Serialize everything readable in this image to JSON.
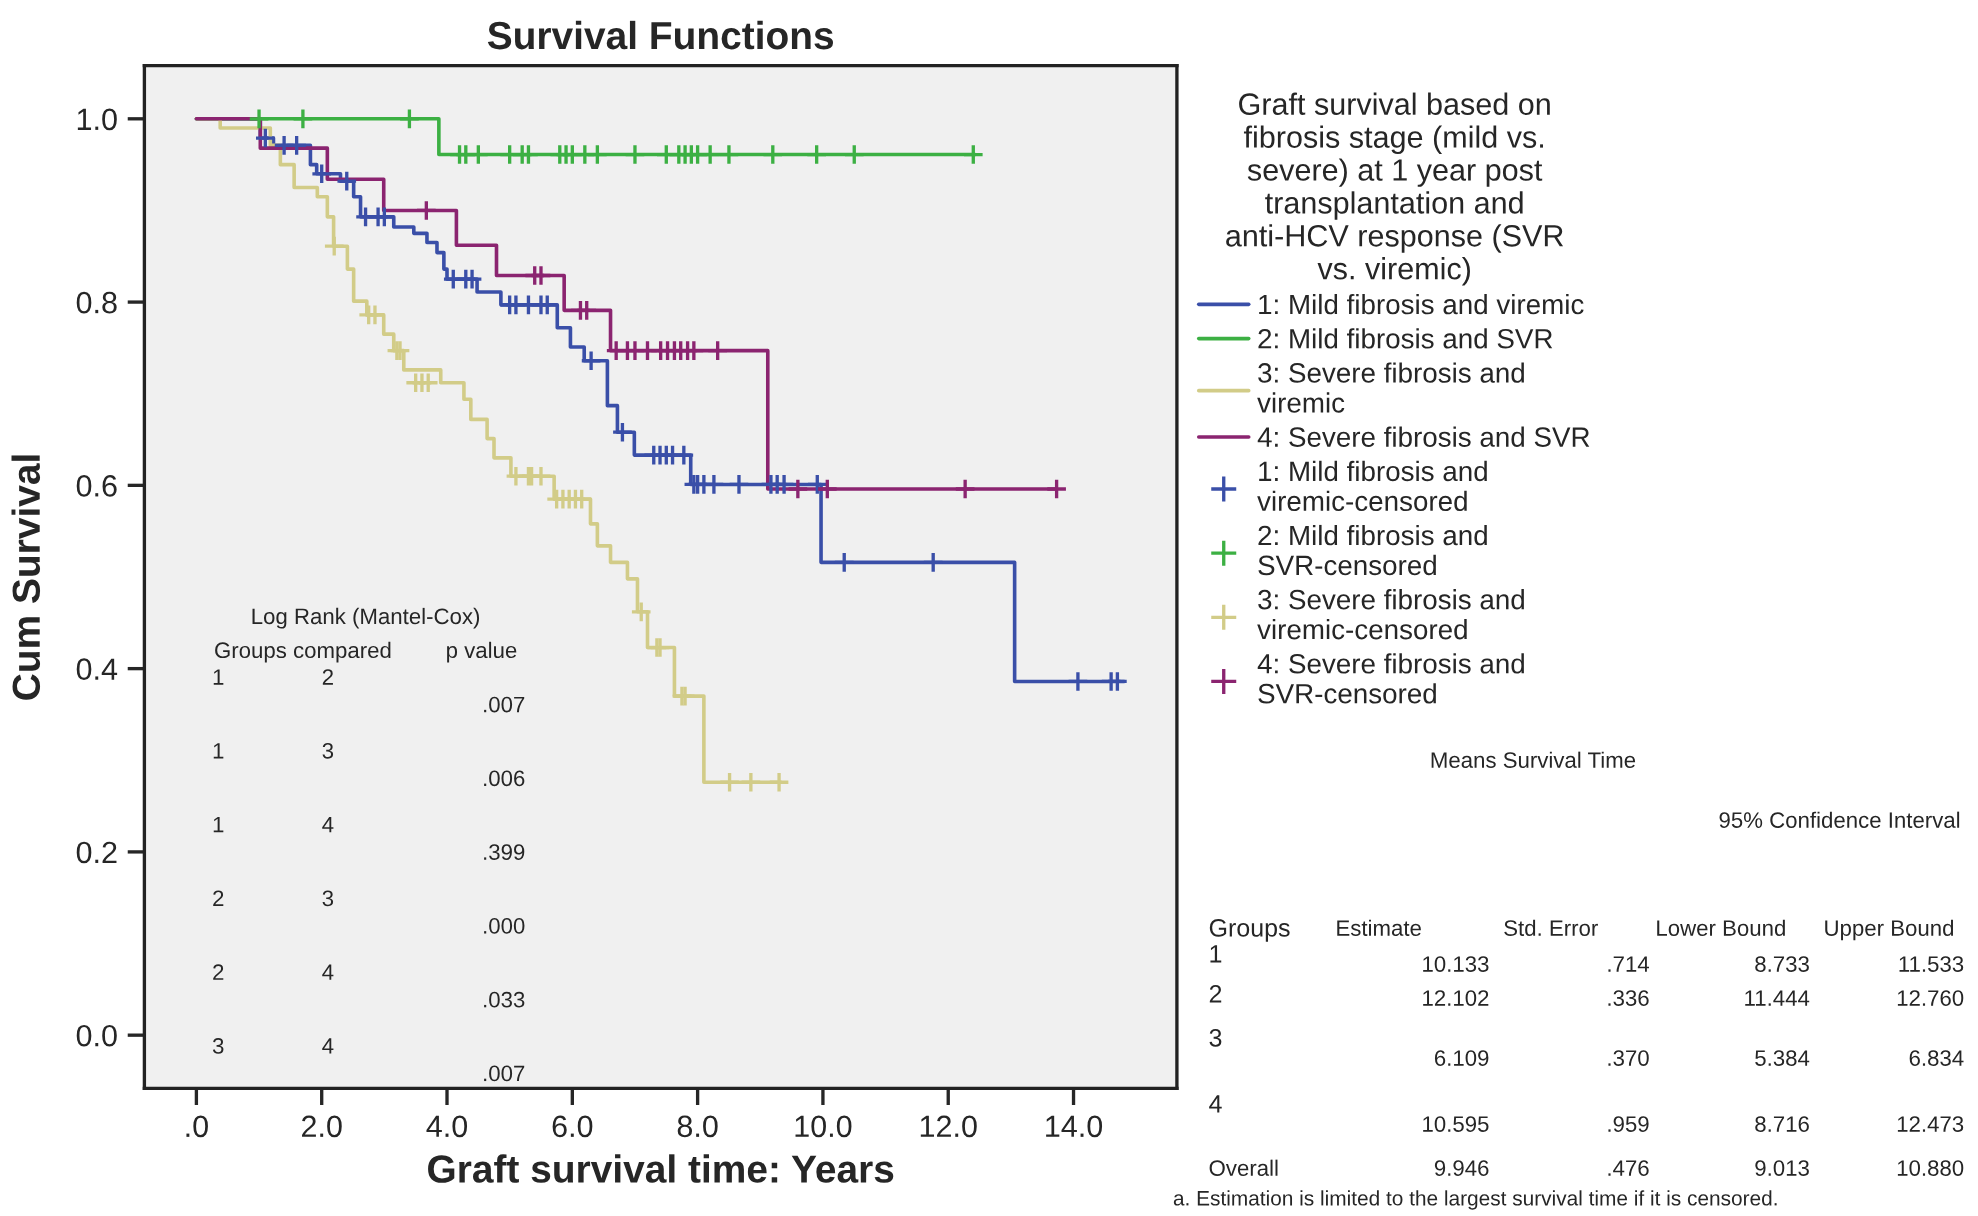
{
  "chart_data": {
    "type": "step",
    "title": "Survival Functions",
    "xlabel": "Graft survival time: Years",
    "ylabel": "Cum Survival",
    "legend_title": "Graft survival based on fibrosis stage (mild vs. severe) at 1 year post transplantation and anti-HCV response (SVR vs. viremic)",
    "xlim": [
      -0.83,
      15.65
    ],
    "ylim": [
      -0.058,
      1.058
    ],
    "xticks": [
      {
        "value": 0,
        "label": ".0"
      },
      {
        "value": 2,
        "label": "2.0"
      },
      {
        "value": 4,
        "label": "4.0"
      },
      {
        "value": 6,
        "label": "6.0"
      },
      {
        "value": 8,
        "label": "8.0"
      },
      {
        "value": 10,
        "label": "10.0"
      },
      {
        "value": 12,
        "label": "12.0"
      },
      {
        "value": 14,
        "label": "14.0"
      }
    ],
    "yticks": [
      {
        "value": 0,
        "label": "0.0"
      },
      {
        "value": 0.2,
        "label": "0.2"
      },
      {
        "value": 0.4,
        "label": "0.4"
      },
      {
        "value": 0.6,
        "label": "0.6"
      },
      {
        "value": 0.8,
        "label": "0.8"
      },
      {
        "value": 1,
        "label": "1.0"
      }
    ],
    "grid": false,
    "legend": "right",
    "series": [
      {
        "name": "1: Mild fibrosis and viremic",
        "color": "#3a4fa8",
        "x": [
          0,
          1.02,
          1.23,
          1.82,
          1.92,
          2.3,
          2.51,
          2.62,
          3.15,
          3.47,
          3.68,
          3.84,
          3.95,
          4.0,
          4.48,
          4.86,
          5.76,
          5.97,
          6.19,
          6.56,
          6.72,
          6.99,
          7.89,
          9.97,
          13.06,
          14.81
        ],
        "values": [
          1.0,
          0.979,
          0.971,
          0.95,
          0.94,
          0.932,
          0.915,
          0.893,
          0.882,
          0.875,
          0.865,
          0.854,
          0.836,
          0.825,
          0.811,
          0.797,
          0.772,
          0.751,
          0.736,
          0.687,
          0.658,
          0.633,
          0.601,
          0.516,
          0.386,
          0.386
        ]
      },
      {
        "name": "2: Mild fibrosis and SVR",
        "color": "#3cb043",
        "x": [
          0,
          3.87,
          12.43
        ],
        "values": [
          1.0,
          0.961,
          0.961
        ]
      },
      {
        "name": "3: Severe fibrosis and viremic",
        "color": "#d2cc88",
        "x": [
          0,
          0.38,
          1.18,
          1.34,
          1.56,
          1.93,
          2.09,
          2.19,
          2.41,
          2.51,
          2.72,
          2.99,
          3.15,
          3.31,
          3.9,
          4.27,
          4.38,
          4.64,
          4.75,
          5.02,
          5.71,
          6.29,
          6.4,
          6.61,
          6.88,
          7.04,
          7.2,
          7.63,
          8.1,
          9.33
        ],
        "values": [
          1.0,
          0.99,
          0.971,
          0.95,
          0.925,
          0.915,
          0.893,
          0.861,
          0.836,
          0.801,
          0.786,
          0.765,
          0.747,
          0.726,
          0.712,
          0.694,
          0.672,
          0.651,
          0.63,
          0.61,
          0.585,
          0.558,
          0.534,
          0.516,
          0.498,
          0.462,
          0.423,
          0.37,
          0.276,
          0.276
        ]
      },
      {
        "name": "4: Severe fibrosis and SVR",
        "color": "#8b2470",
        "x": [
          0,
          1.02,
          2.09,
          2.99,
          4.15,
          4.79,
          5.87,
          6.61,
          9.12,
          13.73
        ],
        "values": [
          1.0,
          0.968,
          0.934,
          0.9,
          0.862,
          0.829,
          0.791,
          0.747,
          0.596,
          0.596
        ]
      },
      {
        "type": "scatter",
        "marker": "cross",
        "name": "1: Mild fibrosis and viremic-censored",
        "color": "#3a4fa8",
        "x": [
          1.1,
          1.4,
          1.6,
          2.0,
          2.4,
          2.7,
          2.9,
          3.0,
          4.1,
          4.3,
          4.4,
          5.0,
          5.1,
          5.3,
          5.5,
          5.6,
          6.3,
          6.8,
          7.3,
          7.4,
          7.5,
          7.6,
          7.78,
          7.94,
          8.0,
          8.1,
          8.26,
          8.66,
          9.17,
          9.27,
          9.38,
          9.91,
          10.34,
          11.76,
          14.07,
          14.6,
          14.7
        ],
        "values": [
          0.979,
          0.971,
          0.971,
          0.94,
          0.932,
          0.893,
          0.893,
          0.893,
          0.825,
          0.825,
          0.825,
          0.797,
          0.797,
          0.797,
          0.797,
          0.797,
          0.736,
          0.658,
          0.633,
          0.633,
          0.633,
          0.633,
          0.633,
          0.601,
          0.601,
          0.601,
          0.601,
          0.601,
          0.601,
          0.601,
          0.601,
          0.601,
          0.516,
          0.516,
          0.386,
          0.386,
          0.386
        ]
      },
      {
        "type": "scatter",
        "marker": "cross",
        "name": "2: Mild fibrosis and SVR-censored",
        "color": "#3cb043",
        "x": [
          1.0,
          1.7,
          3.4,
          4.2,
          4.3,
          4.5,
          5.0,
          5.2,
          5.3,
          5.8,
          5.9,
          6.0,
          6.2,
          6.4,
          7.0,
          7.5,
          7.7,
          7.8,
          7.9,
          8.0,
          8.2,
          8.5,
          9.2,
          9.9,
          10.5,
          12.4
        ],
        "values": [
          1.0,
          1.0,
          1.0,
          0.961,
          0.961,
          0.961,
          0.961,
          0.961,
          0.961,
          0.961,
          0.961,
          0.961,
          0.961,
          0.961,
          0.961,
          0.961,
          0.961,
          0.961,
          0.961,
          0.961,
          0.961,
          0.961,
          0.961,
          0.961,
          0.961,
          0.961
        ]
      },
      {
        "type": "scatter",
        "marker": "cross",
        "name": "3: Severe fibrosis and viremic-censored",
        "color": "#d2cc88",
        "x": [
          2.2,
          2.75,
          2.85,
          3.2,
          3.25,
          3.5,
          3.6,
          3.7,
          5.1,
          5.3,
          5.35,
          5.5,
          5.75,
          5.85,
          5.95,
          6.05,
          6.15,
          7.1,
          7.35,
          7.4,
          7.75,
          7.8,
          8.51,
          8.85,
          9.3
        ],
        "values": [
          0.861,
          0.786,
          0.786,
          0.747,
          0.747,
          0.712,
          0.712,
          0.712,
          0.61,
          0.61,
          0.61,
          0.61,
          0.585,
          0.585,
          0.585,
          0.585,
          0.585,
          0.462,
          0.423,
          0.423,
          0.37,
          0.37,
          0.276,
          0.276,
          0.276
        ]
      },
      {
        "type": "scatter",
        "marker": "cross",
        "name": "4: Severe fibrosis and SVR-censored",
        "color": "#8b2470",
        "x": [
          3.67,
          5.4,
          5.5,
          6.13,
          6.23,
          6.7,
          6.88,
          7.0,
          7.2,
          7.41,
          7.52,
          7.63,
          7.73,
          7.84,
          7.94,
          8.32,
          9.6,
          10.07,
          12.27,
          13.73
        ],
        "values": [
          0.9,
          0.829,
          0.829,
          0.791,
          0.791,
          0.747,
          0.747,
          0.747,
          0.747,
          0.747,
          0.747,
          0.747,
          0.747,
          0.747,
          0.747,
          0.747,
          0.596,
          0.596,
          0.596,
          0.596
        ]
      }
    ],
    "annotations": [
      "Log Rank (Mantel-Cox)",
      "Groups compared",
      "p value",
      "1",
      "2",
      ".007",
      "1",
      "3",
      ".006",
      "1",
      "4",
      ".399",
      "2",
      "3",
      ".000",
      "2",
      "4",
      ".033",
      "3",
      "4",
      ".007",
      "Means Survival Time",
      "95% Confidence Interval",
      "Groups",
      "Estimate",
      "Std. Error",
      "Lower Bound",
      "Upper Bound",
      "1",
      "10.133",
      ".714",
      "8.733",
      "11.533",
      "2",
      "12.102",
      ".336",
      "11.444",
      "12.760",
      "3",
      "6.109",
      ".370",
      "5.384",
      "6.834",
      "4",
      "10.595",
      ".959",
      "8.716",
      "12.473",
      "Overall",
      "9.946",
      ".476",
      "9.013",
      "10.880",
      "a. Estimation is limited to the largest survival time if it is censored."
    ]
  }
}
